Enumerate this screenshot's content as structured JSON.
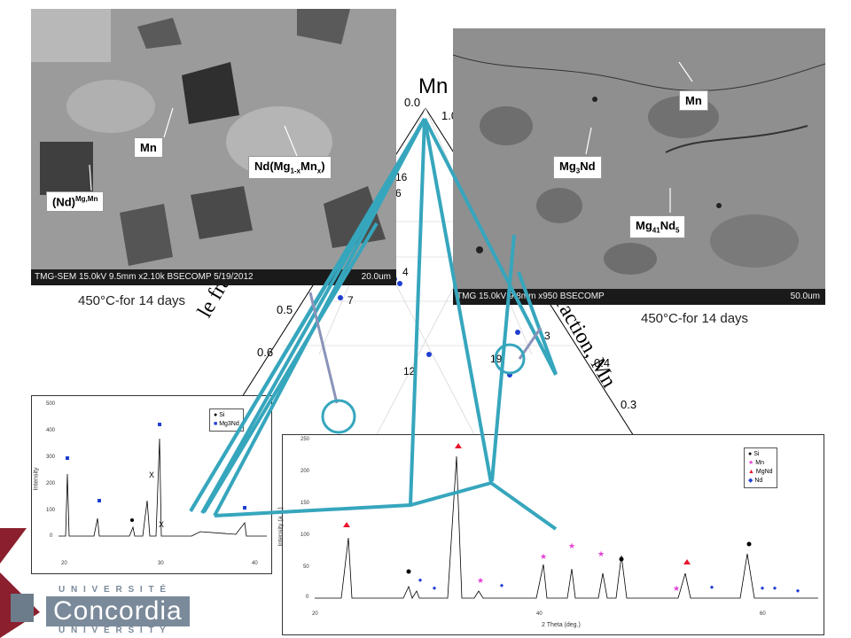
{
  "sem_left": {
    "labels": {
      "mn": "Mn",
      "nd_phase": "Nd(Mg1-xMnx)",
      "nd_solid": "(Nd)Mg,Mn"
    },
    "footer": "TMG-SEM 15.0kV 9.5mm x2.10k BSECOMP 5/19/2012",
    "scale": "20.0um",
    "caption": "450°C-for 14 days"
  },
  "sem_right": {
    "labels": {
      "mn": "Mn",
      "mg3nd": "Mg3Nd",
      "mg41nd5": "Mg41Nd5"
    },
    "footer": "TMG 15.0kV 9.8mm x950 BSECOMP",
    "scale": "50.0um",
    "caption": "450°C-for 14 days"
  },
  "ternary": {
    "apex": "Mn",
    "left_axis": "le fraction,",
    "right_axis": "fraction, Mn",
    "ticks": [
      "0.0",
      "1.0",
      "0.5",
      "0.6",
      "0.4",
      "0.3"
    ],
    "points": [
      "16",
      "6",
      "4",
      "7",
      "3",
      "19",
      "12"
    ]
  },
  "xrd_left": {
    "ylabel": "Intensity",
    "yticks": [
      "500",
      "400",
      "300",
      "200",
      "100",
      "0"
    ],
    "xticks": [
      "20",
      "30",
      "40"
    ],
    "marks": [
      "X",
      "X"
    ],
    "legend": [
      "Si",
      "Mg3Nd"
    ]
  },
  "xrd_right": {
    "ylabel": "Intensity (a.u.)",
    "xlabel": "2 Theta (deg.)",
    "yticks": [
      "250",
      "200",
      "150",
      "100",
      "50",
      "0"
    ],
    "xticks": [
      "20",
      "40",
      "60"
    ],
    "legend": [
      "Si",
      "Mn",
      "MgNd",
      "Nd"
    ]
  },
  "logo": {
    "top": "U N I V E R S I T É",
    "name": "Concordia",
    "bottom": "U N I V E R S I T Y"
  },
  "colors": {
    "teal": "#36a6bd",
    "arrow": "#8a93b8",
    "logo_red": "#8b1f2e"
  }
}
